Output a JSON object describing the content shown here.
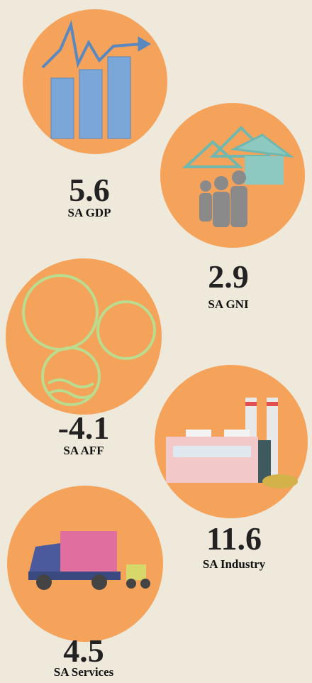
{
  "items": [
    {
      "value": 5.6,
      "label": "SA GDP"
    },
    {
      "value": 2.9,
      "label": "SA GNI"
    },
    {
      "value": -4.1,
      "label": "SA AFF"
    },
    {
      "value": 11.6,
      "label": "SA Industry"
    },
    {
      "value": 4.5,
      "label": "SA Services"
    }
  ]
}
